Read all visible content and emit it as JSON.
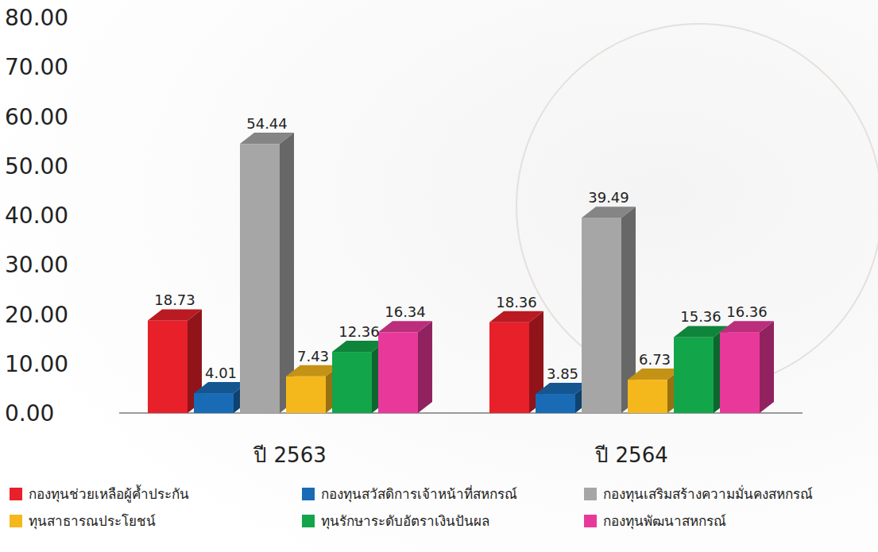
{
  "chart_data": {
    "type": "bar",
    "categories": [
      "ปี 2563",
      "ปี 2564"
    ],
    "series": [
      {
        "name": "กองทุนช่วยเหลือผู้ค้ำประกัน",
        "color": "#e8202a",
        "values": [
          18.73,
          18.36
        ]
      },
      {
        "name": "กองทุนสวัสดิการเจ้าหน้าที่สหกรณ์",
        "color": "#1a6bb5",
        "values": [
          4.01,
          3.85
        ]
      },
      {
        "name": "กองทุนเสริมสร้างความมั่นคงสหกรณ์",
        "color": "#a6a6a6",
        "values": [
          54.44,
          39.49
        ]
      },
      {
        "name": "ทุนสาธารณประโยชน์",
        "color": "#f5b81c",
        "values": [
          7.43,
          6.73
        ]
      },
      {
        "name": "ทุนรักษาระดับอัตราเงินปันผล",
        "color": "#13a54a",
        "values": [
          12.36,
          15.36
        ]
      },
      {
        "name": "กองทุนพัฒนาสหกรณ์",
        "color": "#e8399a",
        "values": [
          16.34,
          16.36
        ]
      }
    ],
    "ylim": [
      0,
      80
    ],
    "yticks": [
      {
        "value": 0,
        "label": "0.00"
      },
      {
        "value": 10,
        "label": "10.00"
      },
      {
        "value": 20,
        "label": "20.00"
      },
      {
        "value": 30,
        "label": "30.00"
      },
      {
        "value": 40,
        "label": "40.00"
      },
      {
        "value": 50,
        "label": "50.00"
      },
      {
        "value": 60,
        "label": "60.00"
      },
      {
        "value": 70,
        "label": "70.00"
      },
      {
        "value": 80,
        "label": "80.00"
      }
    ],
    "grid": false,
    "data_labels": true,
    "legend": "bottom"
  }
}
